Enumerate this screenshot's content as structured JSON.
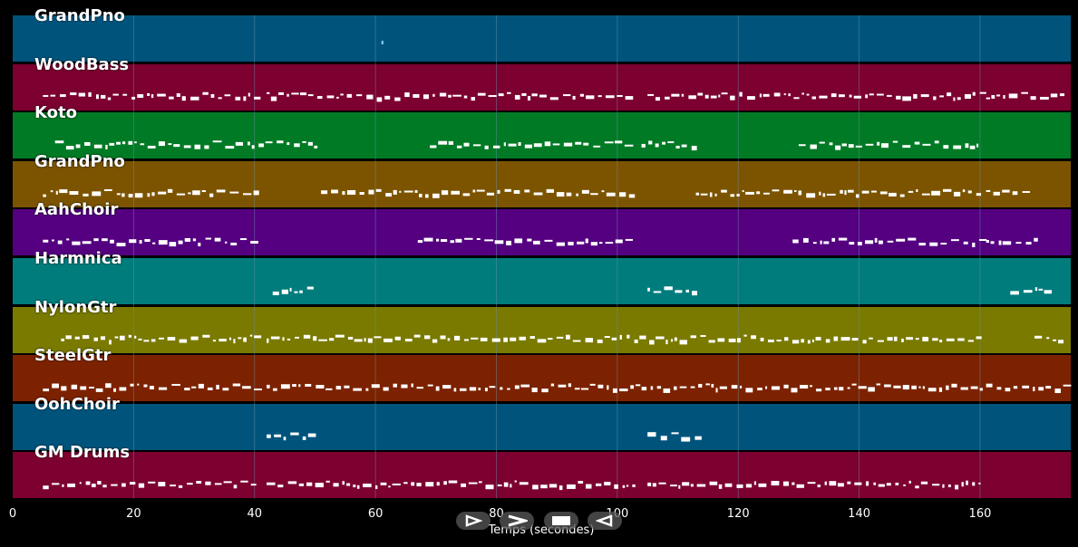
{
  "tracks": [
    {
      "label": "GrandPno",
      "color": "#00547c"
    },
    {
      "label": "WoodBass",
      "color": "#7c0030"
    },
    {
      "label": "Koto",
      "color": "#007a24"
    },
    {
      "label": "GrandPno",
      "color": "#7c5400"
    },
    {
      "label": "AahChoir",
      "color": "#540080"
    },
    {
      "label": "Harmnica",
      "color": "#007c7c"
    },
    {
      "label": "NylonGtr",
      "color": "#7a7a00"
    },
    {
      "label": "SteelGtr",
      "color": "#7c2200"
    },
    {
      "label": "OohChoir",
      "color": "#00547c"
    },
    {
      "label": "GM Drums",
      "color": "#7c0030"
    }
  ],
  "axis": {
    "xlabel": "Temps (secondes)",
    "ticks": [
      "0",
      "20",
      "40",
      "60",
      "80",
      "100",
      "120",
      "140",
      "160"
    ],
    "tick_values": [
      0,
      20,
      40,
      60,
      80,
      100,
      120,
      140,
      160
    ],
    "xlim": [
      0,
      175
    ]
  },
  "transport": [
    {
      "name": "play-button",
      "icon": "play-outline-icon"
    },
    {
      "name": "fast-forward-button",
      "icon": "chevron-right-icon"
    },
    {
      "name": "stop-button",
      "icon": "stop-square-icon"
    },
    {
      "name": "rewind-button",
      "icon": "play-left-icon"
    }
  ],
  "note_color": "#ffffff",
  "grid_color": "#6a8fa8"
}
